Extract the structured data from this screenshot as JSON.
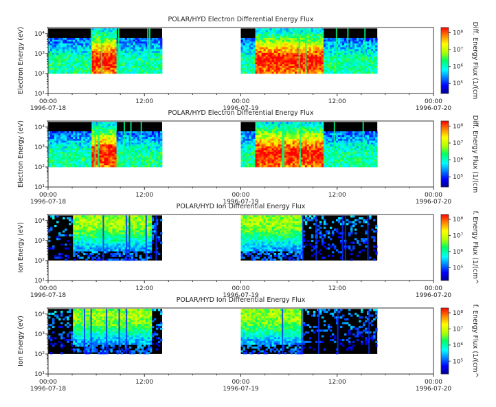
{
  "chart_data": [
    {
      "type": "heatmap",
      "title": "POLAR/HYD  Electron Differential Energy Flux",
      "ylabel": "Electron Energy (eV)",
      "colorbar_label": "Diff. Energy Flux (1/(cm",
      "y_scale": "log",
      "ylim": [
        10,
        20000
      ],
      "y_ticks": [
        "10¹",
        "10²",
        "10³",
        "10⁴"
      ],
      "x_ticks": [
        {
          "time": "00:00",
          "date": "1996-07-18"
        },
        {
          "time": "12:00",
          "date": ""
        },
        {
          "time": "00:00",
          "date": "1996-07-19"
        },
        {
          "time": "12:00",
          "date": ""
        },
        {
          "time": "00:00",
          "date": "1996-07-20"
        }
      ],
      "xlim_hours": [
        0,
        48
      ],
      "data_segments_hours": [
        [
          0,
          14.2
        ],
        [
          24,
          41.0
        ]
      ],
      "energy_range_eV": [
        100,
        18000
      ],
      "cbar_ticks": [
        "10⁵",
        "10⁶",
        "10⁷",
        "10⁸"
      ],
      "cbar_range_log": [
        4.4,
        8.3
      ]
    },
    {
      "type": "heatmap",
      "title": "POLAR/HYD  Electron Differential Energy Flux",
      "ylabel": "Electron Energy (eV)",
      "colorbar_label": "Diff. Energy Flux (1/(cm",
      "y_scale": "log",
      "ylim": [
        10,
        20000
      ],
      "y_ticks": [
        "10¹",
        "10²",
        "10³",
        "10⁴"
      ],
      "x_ticks": [
        {
          "time": "00:00",
          "date": "1996-07-18"
        },
        {
          "time": "12:00",
          "date": ""
        },
        {
          "time": "00:00",
          "date": "1996-07-19"
        },
        {
          "time": "12:00",
          "date": ""
        },
        {
          "time": "00:00",
          "date": "1996-07-20"
        }
      ],
      "xlim_hours": [
        0,
        48
      ],
      "data_segments_hours": [
        [
          0,
          14.2
        ],
        [
          24,
          41.0
        ]
      ],
      "energy_range_eV": [
        100,
        18000
      ],
      "cbar_ticks": [
        "10⁵",
        "10⁶",
        "10⁷",
        "10⁸"
      ],
      "cbar_range_log": [
        4.4,
        8.3
      ]
    },
    {
      "type": "heatmap",
      "title": "POLAR/HYD  Ion Differential Energy Flux",
      "ylabel": "Ion Energy (eV)",
      "colorbar_label": "f. Energy Flux (1/(cm^",
      "y_scale": "log",
      "ylim": [
        10,
        20000
      ],
      "y_ticks": [
        "10¹",
        "10²",
        "10³",
        "10⁴"
      ],
      "x_ticks": [
        {
          "time": "00:00",
          "date": "1996-07-18"
        },
        {
          "time": "12:00",
          "date": ""
        },
        {
          "time": "00:00",
          "date": "1996-07-19"
        },
        {
          "time": "12:00",
          "date": ""
        },
        {
          "time": "00:00",
          "date": "1996-07-20"
        }
      ],
      "xlim_hours": [
        0,
        48
      ],
      "data_segments_hours": [
        [
          0,
          14.2
        ],
        [
          24,
          41.0
        ]
      ],
      "energy_range_eV": [
        100,
        18000
      ],
      "cbar_ticks": [
        "10⁵",
        "10⁶",
        "10⁷",
        "10⁸"
      ],
      "cbar_range_log": [
        4.2,
        8.3
      ]
    },
    {
      "type": "heatmap",
      "title": "POLAR/HYD  Ion Differential Energy Flux",
      "ylabel": "Ion Energy (eV)",
      "colorbar_label": "f. Energy Flux (1/(cm^",
      "y_scale": "log",
      "ylim": [
        10,
        20000
      ],
      "y_ticks": [
        "10¹",
        "10²",
        "10³",
        "10⁴"
      ],
      "x_ticks": [
        {
          "time": "00:00",
          "date": "1996-07-18"
        },
        {
          "time": "12:00",
          "date": ""
        },
        {
          "time": "00:00",
          "date": "1996-07-19"
        },
        {
          "time": "12:00",
          "date": ""
        },
        {
          "time": "00:00",
          "date": "1996-07-20"
        }
      ],
      "xlim_hours": [
        0,
        48
      ],
      "data_segments_hours": [
        [
          0,
          14.2
        ],
        [
          24,
          41.0
        ]
      ],
      "energy_range_eV": [
        100,
        18000
      ],
      "cbar_ticks": [
        "10⁵",
        "10⁶",
        "10⁷",
        "10⁸"
      ],
      "cbar_range_log": [
        4.2,
        8.3
      ]
    }
  ]
}
